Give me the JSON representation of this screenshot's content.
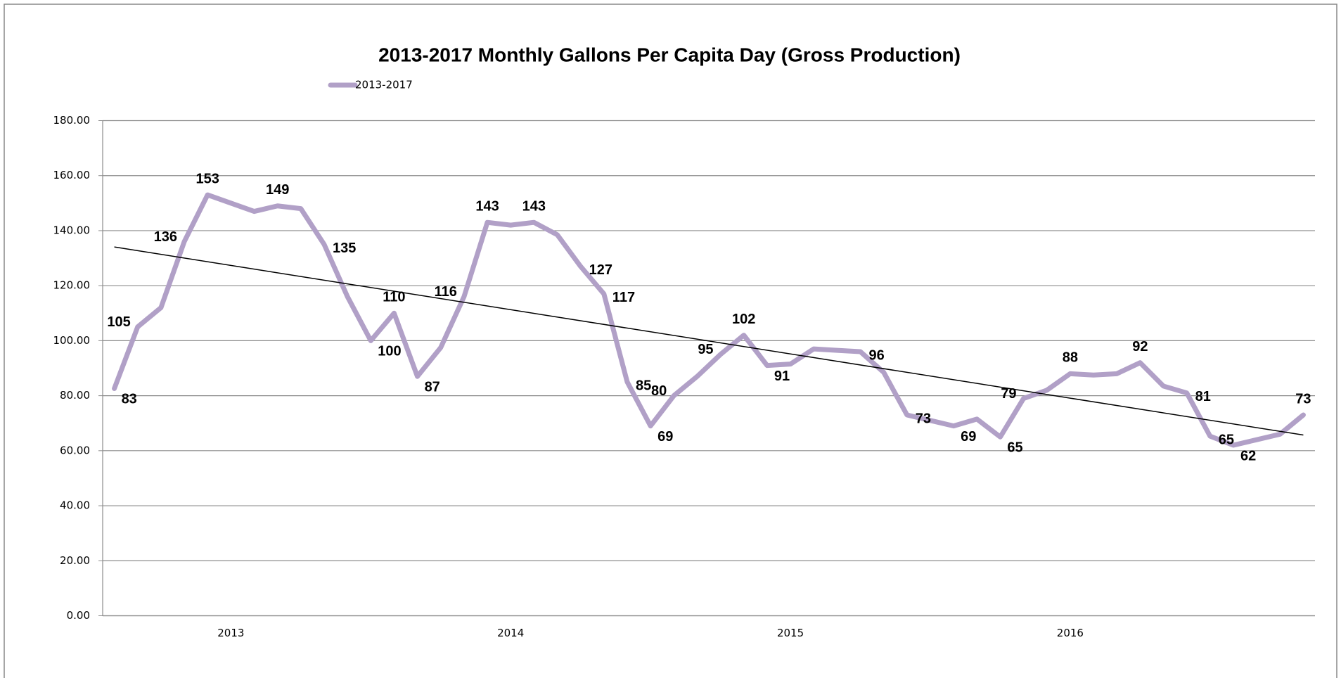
{
  "chart_data": {
    "type": "line",
    "title": "2013-2017 Monthly Gallons Per Capita Day (Gross Production)",
    "categories": [
      null,
      null,
      null,
      null,
      null,
      "2013",
      null,
      null,
      null,
      null,
      null,
      null,
      null,
      null,
      null,
      null,
      null,
      "2014",
      null,
      null,
      null,
      null,
      null,
      null,
      null,
      null,
      null,
      null,
      null,
      "2015",
      null,
      null,
      null,
      null,
      null,
      null,
      null,
      null,
      null,
      null,
      null,
      "2016",
      null,
      null,
      null,
      null,
      null,
      null,
      null,
      null,
      null,
      null
    ],
    "series": [
      {
        "name": "2013-2017",
        "color": "#b1a0c7",
        "values": [
          82.6,
          105,
          112,
          136,
          153,
          150,
          147,
          149,
          148,
          135,
          116,
          100,
          110,
          87,
          97.5,
          116,
          143,
          142,
          143,
          138.5,
          127,
          117,
          85,
          69,
          80,
          87,
          95,
          102,
          91,
          91.5,
          97,
          96.5,
          96,
          88.5,
          73,
          71,
          69,
          71.5,
          65,
          79,
          82,
          88,
          87.5,
          88,
          92,
          83.5,
          81,
          65.3,
          62,
          64,
          66,
          73
        ],
        "value_labels": [
          "83",
          "105",
          null,
          "136",
          "153",
          null,
          null,
          "149",
          null,
          "135",
          null,
          "100",
          "110",
          "87",
          null,
          "116",
          "143",
          null,
          "143",
          null,
          "127",
          "117",
          "85",
          "69",
          "80",
          null,
          "95",
          "102",
          "91",
          null,
          null,
          null,
          "96",
          null,
          "73",
          null,
          "69",
          null,
          "65",
          "79",
          null,
          "88",
          null,
          null,
          "92",
          null,
          "81",
          "65",
          "62",
          null,
          null,
          "73"
        ]
      }
    ],
    "ylim": [
      0,
      180
    ],
    "yticks": [
      {
        "value": 0,
        "label": "0.00"
      },
      {
        "value": 20,
        "label": "20.00"
      },
      {
        "value": 40,
        "label": "40.00"
      },
      {
        "value": 60,
        "label": "60.00"
      },
      {
        "value": 80,
        "label": "80.00"
      },
      {
        "value": 100,
        "label": "100.00"
      },
      {
        "value": 120,
        "label": "120.00"
      },
      {
        "value": 140,
        "label": "140.00"
      },
      {
        "value": 160,
        "label": "160.00"
      },
      {
        "value": 180,
        "label": "180.00"
      }
    ],
    "grid": true,
    "trendline": true,
    "legend": "top-left"
  }
}
